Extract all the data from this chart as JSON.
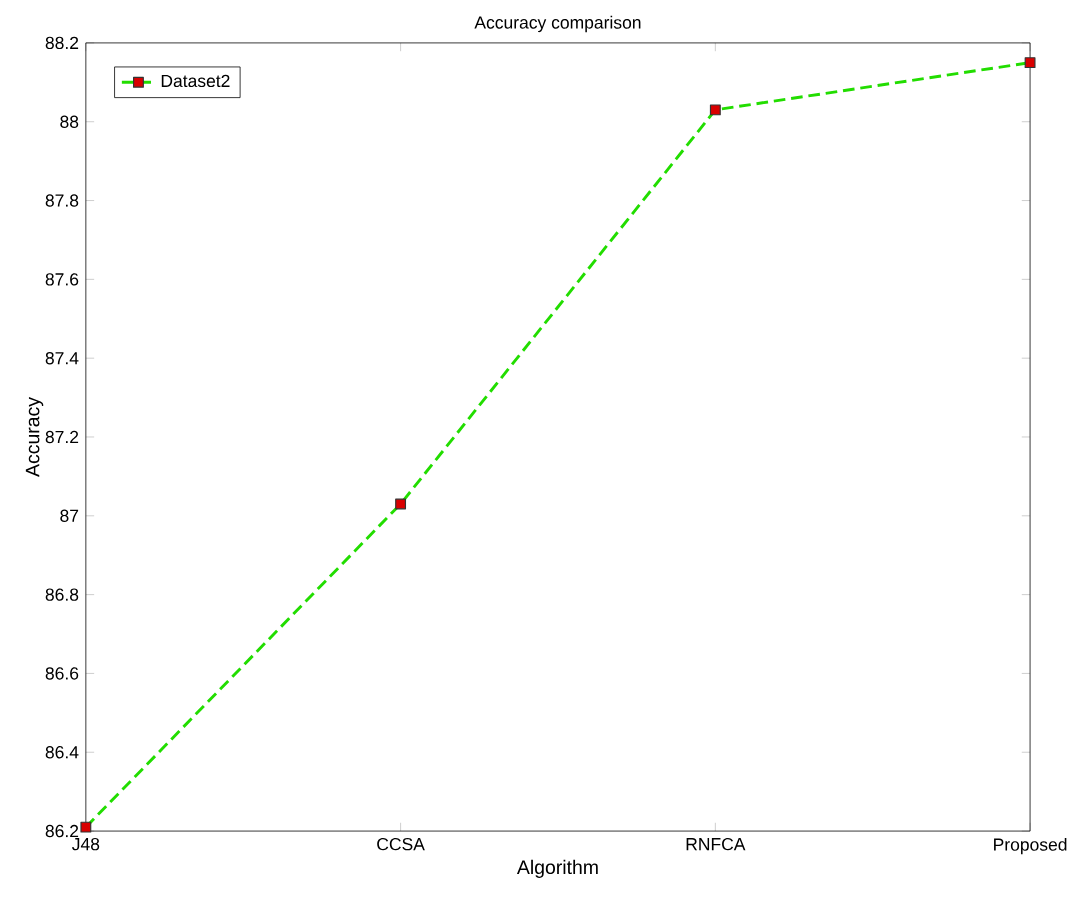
{
  "chart_data": {
    "type": "line",
    "title": "Accuracy comparison",
    "xlabel": "Algorithm",
    "ylabel": "Accuracy",
    "categories": [
      "J48",
      "CCSA",
      "RNFCA",
      "Proposed"
    ],
    "series": [
      {
        "name": "Dataset2",
        "color": "#22dd00",
        "values": [
          86.21,
          87.03,
          88.03,
          88.15
        ]
      }
    ],
    "ylim": [
      86.2,
      88.2
    ],
    "yticks": [
      86.2,
      86.4,
      86.6,
      86.8,
      87,
      87.2,
      87.4,
      87.6,
      87.8,
      88,
      88.2
    ],
    "grid": false,
    "legend": "top left",
    "marker": "square",
    "line_style": "dashed"
  }
}
